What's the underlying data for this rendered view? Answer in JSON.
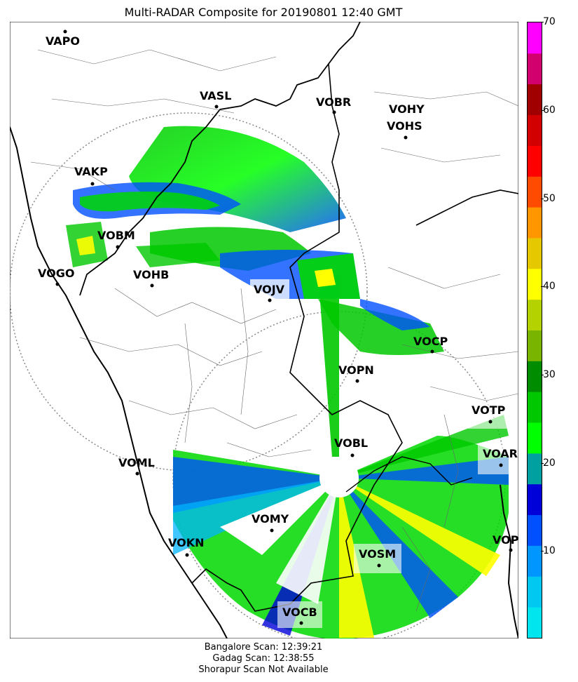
{
  "title": "Multi-RADAR Composite for 20190801 12:40 GMT",
  "footer": {
    "line1": "Bangalore Scan: 12:39:21",
    "line2": "Gadag Scan: 12:38:55",
    "line3": "Shorapur Scan Not Available"
  },
  "colorbar": {
    "ticks": [
      "10",
      "20",
      "30",
      "40",
      "50",
      "60",
      "70"
    ],
    "range": [
      0,
      70
    ],
    "colors": [
      "#00e5ee",
      "#00c8f0",
      "#0096ff",
      "#0050ff",
      "#0000d8",
      "#00a0a0",
      "#00ff00",
      "#00c800",
      "#008c00",
      "#78b400",
      "#b4d200",
      "#ffff00",
      "#e6c800",
      "#ff9600",
      "#ff4b00",
      "#ff0000",
      "#d20000",
      "#a00000",
      "#d2006e",
      "#ff00ff"
    ]
  },
  "stations": [
    {
      "code": "VAPO",
      "highlight": false
    },
    {
      "code": "VASL",
      "highlight": false
    },
    {
      "code": "VOBR",
      "highlight": false
    },
    {
      "code": "VOHY",
      "highlight": false
    },
    {
      "code": "VOHS",
      "highlight": false
    },
    {
      "code": "VAKP",
      "highlight": false
    },
    {
      "code": "VOBM",
      "highlight": false
    },
    {
      "code": "VOGO",
      "highlight": false
    },
    {
      "code": "VOHB",
      "highlight": false
    },
    {
      "code": "VOJV",
      "highlight": true
    },
    {
      "code": "VOCP",
      "highlight": false
    },
    {
      "code": "VOPN",
      "highlight": false
    },
    {
      "code": "VOTP",
      "highlight": true
    },
    {
      "code": "VOBL",
      "highlight": false
    },
    {
      "code": "VOAR",
      "highlight": true
    },
    {
      "code": "VOML",
      "highlight": false
    },
    {
      "code": "VOMY",
      "highlight": false
    },
    {
      "code": "VOKN",
      "highlight": false
    },
    {
      "code": "VOPC",
      "highlight": false
    },
    {
      "code": "VOSM",
      "highlight": true
    },
    {
      "code": "VOCB",
      "highlight": true
    }
  ]
}
